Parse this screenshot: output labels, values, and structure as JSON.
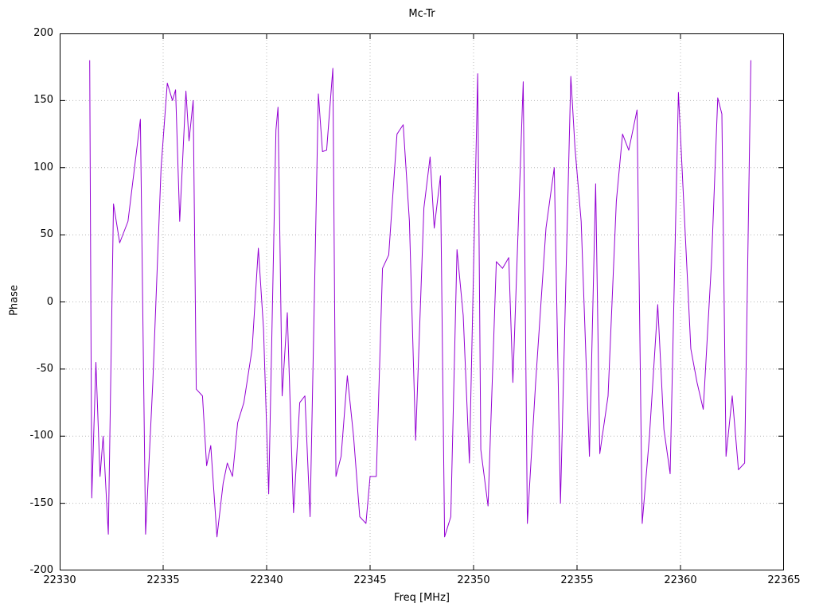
{
  "chart_data": {
    "type": "line",
    "title": "Mc-Tr",
    "xlabel": "Freq [MHz]",
    "ylabel": "Phase",
    "xlim": [
      22330,
      22365
    ],
    "ylim": [
      -200,
      200
    ],
    "xticks": [
      22330,
      22335,
      22340,
      22345,
      22350,
      22355,
      22360,
      22365
    ],
    "yticks": [
      -200,
      -150,
      -100,
      -50,
      0,
      50,
      100,
      150,
      200
    ],
    "grid": true,
    "legend": "none",
    "line_color": "#9400d3",
    "grid_color": "#b8b8b8",
    "series": [
      {
        "name": "Mc-Tr",
        "points": [
          [
            22331.45,
            180
          ],
          [
            22331.55,
            -146
          ],
          [
            22331.75,
            -45
          ],
          [
            22331.95,
            -130
          ],
          [
            22332.1,
            -100
          ],
          [
            22332.35,
            -173
          ],
          [
            22332.6,
            73
          ],
          [
            22332.9,
            44
          ],
          [
            22333.3,
            60
          ],
          [
            22333.9,
            136
          ],
          [
            22334.15,
            -173
          ],
          [
            22334.5,
            -60
          ],
          [
            22334.9,
            100
          ],
          [
            22335.2,
            163
          ],
          [
            22335.45,
            150
          ],
          [
            22335.6,
            158
          ],
          [
            22335.8,
            60
          ],
          [
            22336.1,
            157
          ],
          [
            22336.25,
            120
          ],
          [
            22336.45,
            150
          ],
          [
            22336.6,
            -65
          ],
          [
            22336.9,
            -70
          ],
          [
            22337.1,
            -122
          ],
          [
            22337.3,
            -107
          ],
          [
            22337.6,
            -175
          ],
          [
            22337.9,
            -135
          ],
          [
            22338.1,
            -120
          ],
          [
            22338.35,
            -130
          ],
          [
            22338.6,
            -90
          ],
          [
            22338.9,
            -75
          ],
          [
            22339.3,
            -35
          ],
          [
            22339.6,
            40
          ],
          [
            22339.85,
            -20
          ],
          [
            22340.1,
            -143
          ],
          [
            22340.45,
            128
          ],
          [
            22340.55,
            145
          ],
          [
            22340.75,
            -70
          ],
          [
            22341.0,
            -8
          ],
          [
            22341.3,
            -157
          ],
          [
            22341.6,
            -75
          ],
          [
            22341.85,
            -70
          ],
          [
            22342.1,
            -160
          ],
          [
            22342.5,
            155
          ],
          [
            22342.7,
            112
          ],
          [
            22342.9,
            113
          ],
          [
            22343.2,
            174
          ],
          [
            22343.35,
            -130
          ],
          [
            22343.6,
            -115
          ],
          [
            22343.9,
            -55
          ],
          [
            22344.2,
            -100
          ],
          [
            22344.5,
            -160
          ],
          [
            22344.8,
            -165
          ],
          [
            22345.0,
            -130
          ],
          [
            22345.3,
            -130
          ],
          [
            22345.6,
            25
          ],
          [
            22345.9,
            35
          ],
          [
            22346.3,
            125
          ],
          [
            22346.6,
            132
          ],
          [
            22346.9,
            60
          ],
          [
            22347.2,
            -103
          ],
          [
            22347.6,
            70
          ],
          [
            22347.9,
            108
          ],
          [
            22348.1,
            55
          ],
          [
            22348.4,
            94
          ],
          [
            22348.6,
            -175
          ],
          [
            22348.9,
            -160
          ],
          [
            22349.2,
            39
          ],
          [
            22349.5,
            -10
          ],
          [
            22349.8,
            -120
          ],
          [
            22350.2,
            170
          ],
          [
            22350.35,
            -110
          ],
          [
            22350.7,
            -152
          ],
          [
            22351.1,
            30
          ],
          [
            22351.4,
            25
          ],
          [
            22351.7,
            33
          ],
          [
            22351.9,
            -60
          ],
          [
            22352.4,
            164
          ],
          [
            22352.6,
            -165
          ],
          [
            22353.0,
            -60
          ],
          [
            22353.5,
            55
          ],
          [
            22353.9,
            100
          ],
          [
            22354.2,
            -150
          ],
          [
            22354.7,
            168
          ],
          [
            22354.9,
            115
          ],
          [
            22355.2,
            60
          ],
          [
            22355.6,
            -115
          ],
          [
            22355.9,
            88
          ],
          [
            22356.1,
            -113
          ],
          [
            22356.5,
            -70
          ],
          [
            22356.9,
            75
          ],
          [
            22357.2,
            125
          ],
          [
            22357.5,
            113
          ],
          [
            22357.9,
            143
          ],
          [
            22358.15,
            -165
          ],
          [
            22358.5,
            -100
          ],
          [
            22358.9,
            -2
          ],
          [
            22359.2,
            -95
          ],
          [
            22359.5,
            -128
          ],
          [
            22359.9,
            156
          ],
          [
            22360.2,
            60
          ],
          [
            22360.5,
            -35
          ],
          [
            22360.8,
            -60
          ],
          [
            22361.1,
            -80
          ],
          [
            22361.5,
            30
          ],
          [
            22361.8,
            152
          ],
          [
            22362.0,
            140
          ],
          [
            22362.2,
            -115
          ],
          [
            22362.5,
            -70
          ],
          [
            22362.8,
            -125
          ],
          [
            22363.1,
            -120
          ],
          [
            22363.4,
            180
          ]
        ]
      }
    ]
  }
}
